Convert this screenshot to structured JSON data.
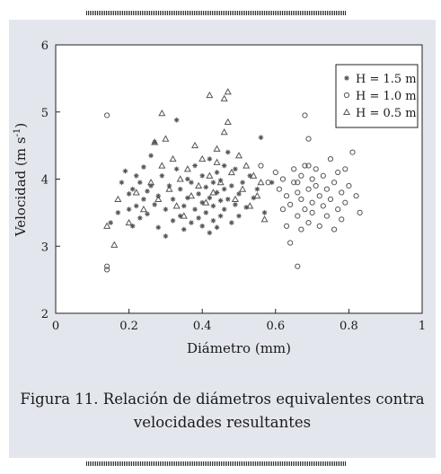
{
  "caption": {
    "line1": "Figura 11. Relación de diámetros equivalentes contra",
    "line2": "velocidades resultantes"
  },
  "colors": {
    "panel_background": "#e4e6ee",
    "plot_background": "#ffffff",
    "marker": "#555555",
    "text": "#1a1a1a"
  },
  "chart_data": {
    "type": "scatter",
    "title": "",
    "xlabel": "Diámetro (mm)",
    "ylabel": "Velocidad (m s⁻¹)",
    "ylabel_parts": {
      "main": "Velocidad (m s",
      "sup": "-1",
      "close": ")"
    },
    "xlim": [
      0,
      1
    ],
    "ylim": [
      2,
      6
    ],
    "xticks": [
      0,
      0.2,
      0.4,
      0.6,
      0.8,
      1
    ],
    "xtick_labels": [
      "0",
      "0.2",
      "0.4",
      "0.6",
      "0.8",
      "1"
    ],
    "yticks": [
      2,
      3,
      4,
      5,
      6
    ],
    "ytick_labels": [
      "2",
      "3",
      "4",
      "5",
      "6"
    ],
    "grid": false,
    "legend_position": "top-right",
    "series": [
      {
        "name": "H = 1.5 m",
        "marker": "asterisk",
        "points": [
          [
            0.15,
            3.35
          ],
          [
            0.17,
            3.5
          ],
          [
            0.18,
            3.95
          ],
          [
            0.19,
            4.12
          ],
          [
            0.2,
            3.55
          ],
          [
            0.2,
            3.78
          ],
          [
            0.21,
            3.3
          ],
          [
            0.21,
            3.85
          ],
          [
            0.22,
            4.05
          ],
          [
            0.22,
            3.6
          ],
          [
            0.23,
            3.95
          ],
          [
            0.23,
            3.42
          ],
          [
            0.24,
            3.7
          ],
          [
            0.24,
            4.18
          ],
          [
            0.25,
            3.82
          ],
          [
            0.25,
            3.48
          ],
          [
            0.26,
            4.35
          ],
          [
            0.26,
            3.9
          ],
          [
            0.27,
            4.55
          ],
          [
            0.27,
            3.62
          ],
          [
            0.28,
            3.28
          ],
          [
            0.28,
            3.75
          ],
          [
            0.29,
            4.05
          ],
          [
            0.3,
            3.15
          ],
          [
            0.3,
            3.55
          ],
          [
            0.31,
            3.9
          ],
          [
            0.32,
            3.38
          ],
          [
            0.32,
            3.7
          ],
          [
            0.33,
            4.88
          ],
          [
            0.33,
            4.15
          ],
          [
            0.34,
            3.45
          ],
          [
            0.34,
            3.85
          ],
          [
            0.35,
            3.25
          ],
          [
            0.35,
            3.6
          ],
          [
            0.36,
            4.0
          ],
          [
            0.36,
            3.72
          ],
          [
            0.37,
            3.35
          ],
          [
            0.37,
            3.95
          ],
          [
            0.38,
            3.55
          ],
          [
            0.38,
            4.2
          ],
          [
            0.39,
            3.78
          ],
          [
            0.39,
            3.42
          ],
          [
            0.4,
            3.65
          ],
          [
            0.4,
            3.3
          ],
          [
            0.4,
            4.05
          ],
          [
            0.41,
            3.88
          ],
          [
            0.41,
            3.5
          ],
          [
            0.42,
            3.2
          ],
          [
            0.42,
            3.72
          ],
          [
            0.42,
            4.3
          ],
          [
            0.43,
            3.95
          ],
          [
            0.43,
            3.6
          ],
          [
            0.43,
            3.38
          ],
          [
            0.44,
            4.1
          ],
          [
            0.44,
            3.8
          ],
          [
            0.44,
            3.28
          ],
          [
            0.45,
            3.68
          ],
          [
            0.45,
            3.98
          ],
          [
            0.45,
            3.45
          ],
          [
            0.46,
            4.2
          ],
          [
            0.46,
            3.55
          ],
          [
            0.46,
            3.85
          ],
          [
            0.47,
            3.7
          ],
          [
            0.47,
            4.4
          ],
          [
            0.48,
            3.35
          ],
          [
            0.48,
            3.9
          ],
          [
            0.49,
            3.62
          ],
          [
            0.49,
            4.15
          ],
          [
            0.5,
            3.78
          ],
          [
            0.5,
            3.45
          ],
          [
            0.51,
            3.95
          ],
          [
            0.52,
            3.58
          ],
          [
            0.53,
            4.05
          ],
          [
            0.54,
            3.72
          ],
          [
            0.55,
            3.85
          ],
          [
            0.56,
            4.62
          ],
          [
            0.57,
            3.5
          ],
          [
            0.59,
            3.95
          ]
        ]
      },
      {
        "name": "H = 1.0 m",
        "marker": "circle",
        "points": [
          [
            0.14,
            4.95
          ],
          [
            0.14,
            2.7
          ],
          [
            0.14,
            2.65
          ],
          [
            0.56,
            4.2
          ],
          [
            0.58,
            3.95
          ],
          [
            0.6,
            4.1
          ],
          [
            0.61,
            3.85
          ],
          [
            0.62,
            3.55
          ],
          [
            0.62,
            4.0
          ],
          [
            0.63,
            3.3
          ],
          [
            0.63,
            3.75
          ],
          [
            0.64,
            3.05
          ],
          [
            0.64,
            3.62
          ],
          [
            0.65,
            3.95
          ],
          [
            0.65,
            4.15
          ],
          [
            0.66,
            3.45
          ],
          [
            0.66,
            3.8
          ],
          [
            0.66,
            2.7
          ],
          [
            0.67,
            3.25
          ],
          [
            0.67,
            3.7
          ],
          [
            0.67,
            4.05
          ],
          [
            0.68,
            4.2
          ],
          [
            0.68,
            3.55
          ],
          [
            0.68,
            4.95
          ],
          [
            0.69,
            3.85
          ],
          [
            0.69,
            3.35
          ],
          [
            0.69,
            4.6
          ],
          [
            0.7,
            3.65
          ],
          [
            0.7,
            4.0
          ],
          [
            0.7,
            3.5
          ],
          [
            0.71,
            3.9
          ],
          [
            0.71,
            4.15
          ],
          [
            0.72,
            3.3
          ],
          [
            0.72,
            3.75
          ],
          [
            0.73,
            4.05
          ],
          [
            0.73,
            3.6
          ],
          [
            0.74,
            3.85
          ],
          [
            0.74,
            3.45
          ],
          [
            0.75,
            4.3
          ],
          [
            0.75,
            3.7
          ],
          [
            0.76,
            3.95
          ],
          [
            0.76,
            3.25
          ],
          [
            0.77,
            3.55
          ],
          [
            0.77,
            4.1
          ],
          [
            0.78,
            3.8
          ],
          [
            0.78,
            3.4
          ],
          [
            0.79,
            3.65
          ],
          [
            0.79,
            4.15
          ],
          [
            0.8,
            3.9
          ],
          [
            0.81,
            4.4
          ],
          [
            0.82,
            3.75
          ],
          [
            0.83,
            3.5
          ],
          [
            0.69,
            4.2
          ],
          [
            0.66,
            3.95
          ]
        ]
      },
      {
        "name": "H = 0.5 m",
        "marker": "triangle",
        "points": [
          [
            0.14,
            3.3
          ],
          [
            0.16,
            3.02
          ],
          [
            0.17,
            3.7
          ],
          [
            0.2,
            3.35
          ],
          [
            0.22,
            3.8
          ],
          [
            0.24,
            3.55
          ],
          [
            0.26,
            3.95
          ],
          [
            0.27,
            4.55
          ],
          [
            0.28,
            3.7
          ],
          [
            0.29,
            4.2
          ],
          [
            0.29,
            4.98
          ],
          [
            0.3,
            4.6
          ],
          [
            0.31,
            3.85
          ],
          [
            0.32,
            4.3
          ],
          [
            0.33,
            3.6
          ],
          [
            0.34,
            4.0
          ],
          [
            0.35,
            3.45
          ],
          [
            0.36,
            4.15
          ],
          [
            0.37,
            3.75
          ],
          [
            0.38,
            4.5
          ],
          [
            0.39,
            3.9
          ],
          [
            0.4,
            4.3
          ],
          [
            0.41,
            3.65
          ],
          [
            0.42,
            5.25
          ],
          [
            0.42,
            4.05
          ],
          [
            0.43,
            3.8
          ],
          [
            0.44,
            4.45
          ],
          [
            0.44,
            4.25
          ],
          [
            0.45,
            3.95
          ],
          [
            0.46,
            5.2
          ],
          [
            0.46,
            4.7
          ],
          [
            0.47,
            5.3
          ],
          [
            0.48,
            4.1
          ],
          [
            0.49,
            3.7
          ],
          [
            0.5,
            4.35
          ],
          [
            0.51,
            3.85
          ],
          [
            0.52,
            4.2
          ],
          [
            0.53,
            3.6
          ],
          [
            0.54,
            4.05
          ],
          [
            0.55,
            3.75
          ],
          [
            0.56,
            3.95
          ],
          [
            0.57,
            3.4
          ],
          [
            0.47,
            4.85
          ]
        ]
      }
    ]
  }
}
